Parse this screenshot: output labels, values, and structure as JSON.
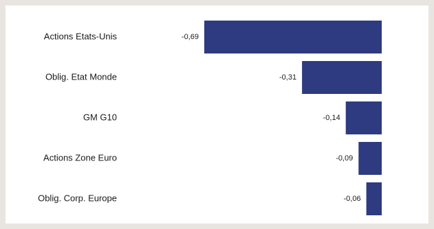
{
  "chart_data": {
    "type": "bar",
    "orientation": "horizontal",
    "categories": [
      "Actions Etats-Unis",
      "Oblig. Etat Monde",
      "GM G10",
      "Actions Zone Euro",
      "Oblig. Corp. Europe"
    ],
    "values": [
      -0.69,
      -0.31,
      -0.14,
      -0.09,
      -0.06
    ],
    "value_labels": [
      "-0,69",
      "-0,31",
      "-0,14",
      "-0,09",
      "-0,06"
    ],
    "title": "",
    "xlabel": "",
    "ylabel": "",
    "xlim": [
      -0.69,
      0
    ],
    "grid": false,
    "legend": "none",
    "colors": {
      "bar": "#2e3b80",
      "background": "#ffffff",
      "frame": "#e8e4e0"
    }
  }
}
